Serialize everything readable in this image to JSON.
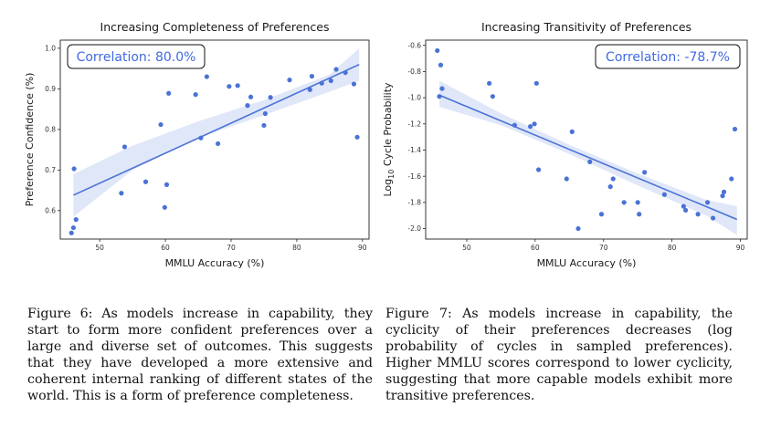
{
  "figures": [
    {
      "chart_data": {
        "type": "scatter",
        "title": "Increasing Completeness of Preferences",
        "xlabel": "MMLU Accuracy (%)",
        "ylabel": "Preference Confidence (%)",
        "xlim": [
          44,
          91
        ],
        "ylim": [
          0.53,
          1.02
        ],
        "xticks": [
          50,
          60,
          70,
          80,
          90
        ],
        "yticks": [
          0.6,
          0.7,
          0.8,
          0.9,
          1.0
        ],
        "ytick_labels": [
          "0.6",
          "0.7",
          "0.8",
          "0.9",
          "1.0"
        ],
        "annotation": "Correlation: 80.0%",
        "annotation_position": "top-left",
        "grid": false,
        "regression": {
          "x": [
            46,
            89.5
          ],
          "y": [
            0.638,
            0.96
          ]
        },
        "confidence_band": {
          "x": [
            46,
            55,
            65,
            75,
            85,
            89.5
          ],
          "lower": [
            0.585,
            0.7,
            0.78,
            0.835,
            0.893,
            0.92
          ],
          "upper": [
            0.69,
            0.76,
            0.82,
            0.872,
            0.935,
            1.0
          ]
        },
        "color": "#4a72d6",
        "series": [
          {
            "x": [
              45.7,
              46.0,
              46.1,
              46.4,
              53.3,
              53.8,
              57.0,
              59.3,
              59.9,
              60.2,
              60.5,
              64.6,
              65.4,
              66.3,
              68.0,
              69.7,
              71.0,
              72.5,
              73.0,
              75.0,
              75.2,
              76.0,
              78.9,
              82.0,
              82.3,
              83.8,
              85.2,
              86.0,
              87.4,
              88.7,
              89.2
            ],
            "y": [
              0.545,
              0.558,
              0.703,
              0.578,
              0.643,
              0.757,
              0.671,
              0.812,
              0.608,
              0.664,
              0.889,
              0.886,
              0.779,
              0.93,
              0.765,
              0.906,
              0.908,
              0.859,
              0.88,
              0.81,
              0.839,
              0.879,
              0.922,
              0.898,
              0.931,
              0.914,
              0.92,
              0.948,
              0.94,
              0.912,
              0.781
            ]
          }
        ]
      },
      "caption": "Figure 6: As models increase in capability, they start to form more confident preferences over a large and diverse set of outcomes. This suggests that they have developed a more extensive and coherent internal ranking of different states of the world. This is a form of preference completeness."
    },
    {
      "chart_data": {
        "type": "scatter",
        "title": "Increasing Transitivity of Preferences",
        "xlabel": "MMLU Accuracy (%)",
        "ylabel_main": "Log",
        "ylabel_sub": "10",
        "ylabel_rest": " Cycle Probability",
        "xlim": [
          44,
          91
        ],
        "ylim": [
          -2.08,
          -0.56
        ],
        "xticks": [
          50,
          60,
          70,
          80,
          90
        ],
        "yticks": [
          -2.0,
          -1.8,
          -1.6,
          -1.4,
          -1.2,
          -1.0,
          -0.8,
          -0.6
        ],
        "ytick_labels": [
          "-2.0",
          "-1.8",
          "-1.6",
          "-1.4",
          "-1.2",
          "-1.0",
          "-0.8",
          "-0.6"
        ],
        "annotation": "Correlation: -78.7%",
        "annotation_position": "top-right",
        "grid": false,
        "regression": {
          "x": [
            46,
            89.5
          ],
          "y": [
            -0.98,
            -1.93
          ]
        },
        "confidence_band": {
          "x": [
            46,
            55,
            65,
            75,
            85,
            89.5
          ],
          "lower": [
            -1.07,
            -1.21,
            -1.43,
            -1.67,
            -1.9,
            -2.05
          ],
          "upper": [
            -0.87,
            -1.12,
            -1.36,
            -1.58,
            -1.78,
            -1.83
          ]
        },
        "color": "#4a72d6",
        "series": [
          {
            "x": [
              45.7,
              46.0,
              46.2,
              46.4,
              53.3,
              53.8,
              57.0,
              59.3,
              59.9,
              60.2,
              60.5,
              64.6,
              65.4,
              66.3,
              68.0,
              69.7,
              71.0,
              71.4,
              73.0,
              75.0,
              75.2,
              76.0,
              78.9,
              81.7,
              82.0,
              83.8,
              85.2,
              86.0,
              87.4,
              87.6,
              88.7,
              89.2
            ],
            "y": [
              -0.64,
              -0.99,
              -0.75,
              -0.93,
              -0.89,
              -0.99,
              -1.21,
              -1.22,
              -1.2,
              -0.89,
              -1.55,
              -1.62,
              -1.26,
              -2.0,
              -1.49,
              -1.89,
              -1.68,
              -1.62,
              -1.8,
              -1.8,
              -1.89,
              -1.57,
              -1.74,
              -1.83,
              -1.86,
              -1.89,
              -1.8,
              -1.92,
              -1.75,
              -1.72,
              -1.62,
              -1.24
            ]
          }
        ]
      },
      "caption": "Figure 7: As models increase in capability, the cyclicity of their preferences decreases (log probability of cycles in sampled preferences). Higher MMLU scores correspond to lower cyclicity, suggesting that more capable models exhibit more transitive preferences."
    }
  ]
}
